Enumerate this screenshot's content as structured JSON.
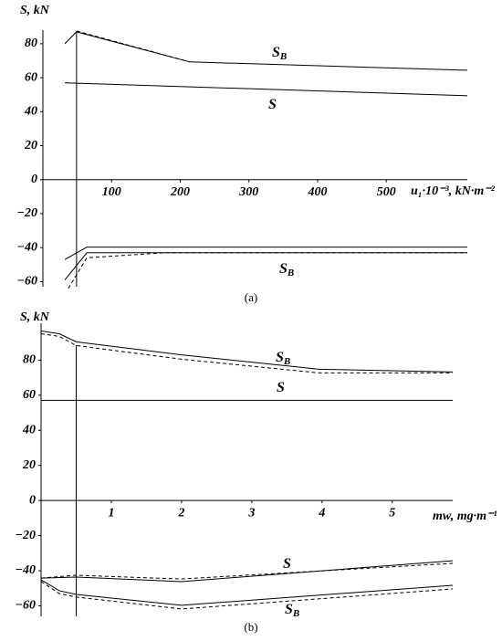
{
  "chart_data": [
    {
      "type": "line",
      "caption": "(a)",
      "ylabel": "S, kN",
      "xlabel": "u₁·10⁻³, kN·m⁻²",
      "xlim": [
        0,
        618
      ],
      "ylim": [
        -63,
        88
      ],
      "xticks": [
        100,
        200,
        300,
        400,
        500
      ],
      "yticks": [
        80,
        60,
        40,
        20,
        0,
        {
          "value": -20,
          "label": "−20"
        },
        {
          "value": -40,
          "label": "−40"
        },
        {
          "value": -60,
          "label": "−60"
        }
      ],
      "vline": 49,
      "annotations": [
        {
          "text": "S",
          "sub": "B"
        },
        {
          "text": "S"
        },
        {
          "text": "S",
          "sub": "B"
        }
      ],
      "series": [
        {
          "style": "solid",
          "color": "#000",
          "x": [
            32,
            49,
            214,
            618
          ],
          "values": [
            80,
            87,
            69.3,
            64.4
          ]
        },
        {
          "style": "dashed",
          "color": "#000",
          "x": [
            49,
            214
          ],
          "values": [
            87.5,
            69.3
          ]
        },
        {
          "style": "solid",
          "color": "#000",
          "x": [
            32,
            618
          ],
          "values": [
            57,
            49.4
          ]
        },
        {
          "style": "solid",
          "color": "#000",
          "x": [
            32,
            64,
            618
          ],
          "values": [
            -47,
            -39.7,
            -39.7
          ]
        },
        {
          "style": "solid",
          "color": "#000",
          "x": [
            32,
            64,
            618
          ],
          "values": [
            -59,
            -43,
            -43
          ]
        },
        {
          "style": "dashed",
          "color": "#000",
          "x": [
            37,
            64,
            177,
            618
          ],
          "values": [
            -64,
            -46,
            -43,
            -43
          ]
        }
      ]
    },
    {
      "type": "line",
      "caption": "(b)",
      "ylabel": "S, kN",
      "xlabel": "mw, mg·m⁻¹",
      "xlim": [
        0,
        5.86
      ],
      "ylim": [
        -66,
        101
      ],
      "xticks": [
        1,
        2,
        3,
        4,
        5
      ],
      "yticks": [
        80,
        60,
        40,
        20,
        0,
        {
          "value": -20,
          "label": "−20"
        },
        {
          "value": -40,
          "label": "−40"
        },
        {
          "value": -60,
          "label": "−60"
        }
      ],
      "vline": 0.5,
      "annotations": [
        {
          "text": "S",
          "sub": "B"
        },
        {
          "text": "S"
        },
        {
          "text": "S"
        },
        {
          "text": "S",
          "sub": "B"
        }
      ],
      "series": [
        {
          "style": "solid",
          "color": "#000",
          "x": [
            0,
            0.26,
            0.5,
            2,
            3.96,
            5.86
          ],
          "values": [
            96.6,
            95,
            90.4,
            83,
            74.8,
            73.2
          ]
        },
        {
          "style": "dashed",
          "color": "#000",
          "x": [
            0,
            0.26,
            0.5,
            2,
            3.96,
            5.86
          ],
          "values": [
            95,
            93.5,
            88.3,
            80.5,
            72.7,
            72.7
          ]
        },
        {
          "style": "solid",
          "color": "#000",
          "x": [
            0,
            5.86
          ],
          "values": [
            57.1,
            57.1
          ]
        },
        {
          "style": "solid",
          "color": "#000",
          "x": [
            0,
            0.5,
            2,
            5.86
          ],
          "values": [
            -44.2,
            -43.6,
            -46.2,
            -34.3
          ]
        },
        {
          "style": "dashed",
          "color": "#000",
          "x": [
            0,
            0.5,
            2,
            5.86
          ],
          "values": [
            -44.2,
            -42.6,
            -44.7,
            -35.8
          ]
        },
        {
          "style": "solid",
          "color": "#000",
          "x": [
            0,
            0.26,
            0.5,
            2,
            5.86
          ],
          "values": [
            -45.2,
            -51.4,
            -53.5,
            -59.7,
            -48.3
          ]
        },
        {
          "style": "dashed",
          "color": "#000",
          "x": [
            0,
            0.26,
            0.5,
            2,
            5.86
          ],
          "values": [
            -46.2,
            -53,
            -55,
            -61.8,
            -50.4
          ]
        }
      ]
    }
  ]
}
